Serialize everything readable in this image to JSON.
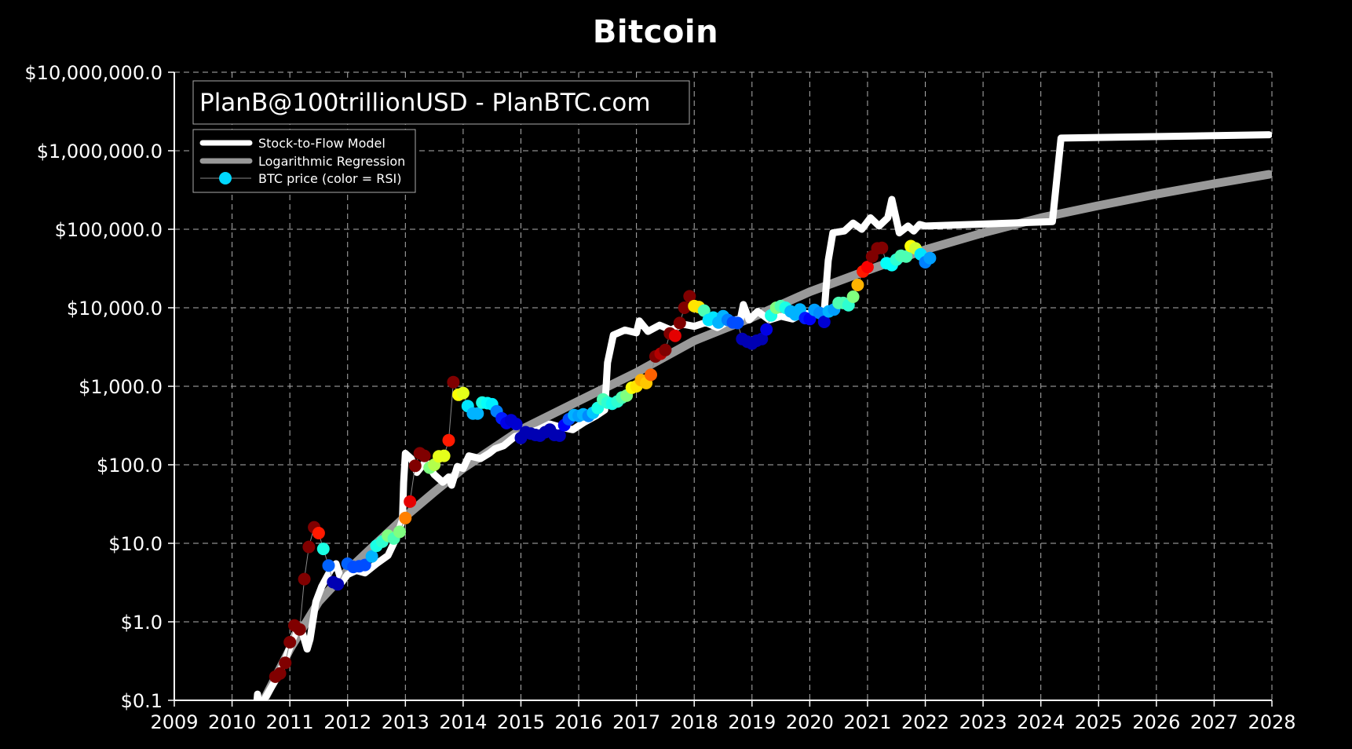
{
  "chart_data": {
    "type": "line",
    "title": "Bitcoin",
    "xlabel": "",
    "ylabel": "",
    "yscale": "log",
    "xlim": [
      2009,
      2028
    ],
    "ylim": [
      0.1,
      10000000
    ],
    "grid": true,
    "x_ticks": [
      "2009",
      "2010",
      "2011",
      "2012",
      "2013",
      "2014",
      "2015",
      "2016",
      "2017",
      "2018",
      "2019",
      "2020",
      "2021",
      "2022",
      "2023",
      "2024",
      "2025",
      "2026",
      "2027",
      "2028"
    ],
    "y_ticks": [
      "$0.1",
      "$1.0",
      "$10.0",
      "$100.0",
      "$1,000.0",
      "$10,000.0",
      "$100,000.0",
      "$1,000,000.0",
      "$10,000,000.0"
    ],
    "annotation": "PlanB@100trillionUSD - PlanBTC.com",
    "legend": {
      "position": "upper left",
      "entries": [
        {
          "label": "Stock-to-Flow Model",
          "color": "#ffffff",
          "style": "thick-line"
        },
        {
          "label": "Logarithmic Regression",
          "color": "#999999",
          "style": "thick-line"
        },
        {
          "label": "BTC price (color = RSI)",
          "color": "#00d8ff",
          "style": "line-marker"
        }
      ]
    },
    "series": [
      {
        "name": "Stock-to-Flow Model",
        "color": "#ffffff",
        "points": [
          [
            2010.42,
            0.08
          ],
          [
            2010.44,
            0.12
          ],
          [
            2010.47,
            0.08
          ],
          [
            2010.55,
            0.1
          ],
          [
            2010.75,
            0.18
          ],
          [
            2010.9,
            0.3
          ],
          [
            2011.05,
            0.6
          ],
          [
            2011.15,
            0.9
          ],
          [
            2011.2,
            0.8
          ],
          [
            2011.3,
            0.45
          ],
          [
            2011.35,
            0.6
          ],
          [
            2011.45,
            1.8
          ],
          [
            2011.55,
            2.8
          ],
          [
            2011.7,
            4.5
          ],
          [
            2011.8,
            5.5
          ],
          [
            2011.9,
            3.2
          ],
          [
            2012.0,
            4.0
          ],
          [
            2012.15,
            4.5
          ],
          [
            2012.3,
            4.2
          ],
          [
            2012.5,
            5.5
          ],
          [
            2012.7,
            7
          ],
          [
            2012.85,
            12
          ],
          [
            2012.95,
            20
          ],
          [
            2012.97,
            60
          ],
          [
            2013.0,
            140
          ],
          [
            2013.1,
            120
          ],
          [
            2013.2,
            80
          ],
          [
            2013.35,
            110
          ],
          [
            2013.5,
            75
          ],
          [
            2013.65,
            60
          ],
          [
            2013.75,
            70
          ],
          [
            2013.8,
            55
          ],
          [
            2013.9,
            95
          ],
          [
            2014.0,
            90
          ],
          [
            2014.1,
            130
          ],
          [
            2014.3,
            120
          ],
          [
            2014.45,
            140
          ],
          [
            2014.55,
            160
          ],
          [
            2014.7,
            175
          ],
          [
            2014.9,
            230
          ],
          [
            2015.1,
            250
          ],
          [
            2015.3,
            280
          ],
          [
            2015.5,
            330
          ],
          [
            2015.7,
            300
          ],
          [
            2015.9,
            280
          ],
          [
            2016.1,
            350
          ],
          [
            2016.3,
            420
          ],
          [
            2016.45,
            500
          ],
          [
            2016.5,
            2000
          ],
          [
            2016.6,
            4500
          ],
          [
            2016.8,
            5200
          ],
          [
            2017.0,
            4800
          ],
          [
            2017.05,
            6800
          ],
          [
            2017.2,
            5000
          ],
          [
            2017.4,
            6000
          ],
          [
            2017.6,
            5200
          ],
          [
            2017.8,
            6200
          ],
          [
            2018.0,
            5800
          ],
          [
            2018.2,
            6500
          ],
          [
            2018.4,
            5600
          ],
          [
            2018.6,
            6800
          ],
          [
            2018.8,
            7200
          ],
          [
            2018.85,
            11000
          ],
          [
            2018.95,
            7000
          ],
          [
            2019.1,
            9000
          ],
          [
            2019.3,
            7000
          ],
          [
            2019.5,
            7800
          ],
          [
            2019.7,
            7200
          ],
          [
            2019.9,
            8500
          ],
          [
            2020.1,
            8200
          ],
          [
            2020.25,
            9000
          ],
          [
            2020.32,
            40000
          ],
          [
            2020.4,
            90000
          ],
          [
            2020.6,
            95000
          ],
          [
            2020.75,
            120000
          ],
          [
            2020.9,
            100000
          ],
          [
            2021.05,
            140000
          ],
          [
            2021.2,
            110000
          ],
          [
            2021.35,
            140000
          ],
          [
            2021.42,
            240000
          ],
          [
            2021.55,
            90000
          ],
          [
            2021.7,
            110000
          ],
          [
            2021.8,
            95000
          ],
          [
            2021.9,
            115000
          ],
          [
            2022.0,
            110000
          ],
          [
            2024.2,
            125000
          ],
          [
            2024.35,
            1450000
          ],
          [
            2027.95,
            1600000
          ]
        ]
      },
      {
        "name": "Logarithmic Regression",
        "color": "#999999",
        "points": [
          [
            2010.55,
            0.1
          ],
          [
            2011.0,
            0.45
          ],
          [
            2011.5,
            1.8
          ],
          [
            2012.0,
            4.5
          ],
          [
            2012.5,
            10
          ],
          [
            2013.0,
            22
          ],
          [
            2013.5,
            45
          ],
          [
            2014.0,
            90
          ],
          [
            2015.0,
            280
          ],
          [
            2016.0,
            650
          ],
          [
            2017.0,
            1500
          ],
          [
            2018.0,
            3800
          ],
          [
            2019.0,
            7500
          ],
          [
            2020.0,
            16000
          ],
          [
            2021.0,
            30000
          ],
          [
            2022.0,
            55000
          ],
          [
            2023.0,
            90000
          ],
          [
            2024.0,
            140000
          ],
          [
            2025.0,
            200000
          ],
          [
            2026.0,
            280000
          ],
          [
            2027.0,
            380000
          ],
          [
            2027.95,
            500000
          ]
        ]
      },
      {
        "name": "BTC price (color = RSI)",
        "line_color": "#888888",
        "marker_colormap": "jet (RSI)",
        "points": [
          [
            2010.75,
            0.2,
            1
          ],
          [
            2010.83,
            0.22,
            1
          ],
          [
            2010.92,
            0.3,
            1
          ],
          [
            2011.0,
            0.55,
            1
          ],
          [
            2011.08,
            0.9,
            1
          ],
          [
            2011.17,
            0.8,
            1
          ],
          [
            2011.25,
            3.5,
            1
          ],
          [
            2011.33,
            9,
            1
          ],
          [
            2011.42,
            16,
            1
          ],
          [
            2011.5,
            13.5,
            0.85
          ],
          [
            2011.58,
            8.5,
            0.4
          ],
          [
            2011.67,
            5.2,
            0.22
          ],
          [
            2011.75,
            3.2,
            0.05
          ],
          [
            2011.83,
            3.0,
            0.05
          ],
          [
            2012.0,
            5.5,
            0.22
          ],
          [
            2012.1,
            5.0,
            0.2
          ],
          [
            2012.2,
            5.1,
            0.2
          ],
          [
            2012.3,
            5.3,
            0.2
          ],
          [
            2012.42,
            6.8,
            0.3
          ],
          [
            2012.5,
            9.3,
            0.4
          ],
          [
            2012.6,
            10.5,
            0.42
          ],
          [
            2012.7,
            12.5,
            0.5
          ],
          [
            2012.8,
            11.5,
            0.45
          ],
          [
            2012.9,
            14,
            0.5
          ],
          [
            2013.0,
            21,
            0.75
          ],
          [
            2013.08,
            34,
            0.9
          ],
          [
            2013.17,
            97,
            1
          ],
          [
            2013.25,
            140,
            1
          ],
          [
            2013.33,
            130,
            1
          ],
          [
            2013.42,
            92,
            0.5
          ],
          [
            2013.5,
            100,
            0.55
          ],
          [
            2013.58,
            128,
            0.6
          ],
          [
            2013.67,
            130,
            0.6
          ],
          [
            2013.75,
            205,
            0.85
          ],
          [
            2013.83,
            1130,
            1
          ],
          [
            2013.92,
            780,
            0.62
          ],
          [
            2014.0,
            820,
            0.6
          ],
          [
            2014.08,
            560,
            0.35
          ],
          [
            2014.17,
            450,
            0.3
          ],
          [
            2014.25,
            450,
            0.3
          ],
          [
            2014.33,
            620,
            0.4
          ],
          [
            2014.42,
            610,
            0.38
          ],
          [
            2014.5,
            590,
            0.36
          ],
          [
            2014.58,
            480,
            0.25
          ],
          [
            2014.67,
            390,
            0.15
          ],
          [
            2014.75,
            340,
            0.1
          ],
          [
            2014.83,
            370,
            0.08
          ],
          [
            2014.92,
            330,
            0.08
          ],
          [
            2015.0,
            220,
            0.05
          ],
          [
            2015.08,
            260,
            0.05
          ],
          [
            2015.17,
            250,
            0.05
          ],
          [
            2015.25,
            240,
            0.05
          ],
          [
            2015.33,
            235,
            0.05
          ],
          [
            2015.42,
            260,
            0.05
          ],
          [
            2015.5,
            280,
            0.05
          ],
          [
            2015.58,
            240,
            0.05
          ],
          [
            2015.67,
            235,
            0.05
          ],
          [
            2015.75,
            320,
            0.12
          ],
          [
            2015.83,
            380,
            0.2
          ],
          [
            2015.92,
            430,
            0.3
          ],
          [
            2016.0,
            420,
            0.28
          ],
          [
            2016.08,
            440,
            0.3
          ],
          [
            2016.17,
            420,
            0.26
          ],
          [
            2016.25,
            460,
            0.32
          ],
          [
            2016.33,
            530,
            0.4
          ],
          [
            2016.42,
            680,
            0.45
          ],
          [
            2016.5,
            620,
            0.42
          ],
          [
            2016.58,
            600,
            0.4
          ],
          [
            2016.67,
            640,
            0.42
          ],
          [
            2016.75,
            720,
            0.45
          ],
          [
            2016.83,
            760,
            0.5
          ],
          [
            2016.92,
            960,
            0.62
          ],
          [
            2017.0,
            1000,
            0.65
          ],
          [
            2017.08,
            1200,
            0.7
          ],
          [
            2017.17,
            1100,
            0.68
          ],
          [
            2017.25,
            1400,
            0.78
          ],
          [
            2017.33,
            2400,
            1
          ],
          [
            2017.42,
            2600,
            0.95
          ],
          [
            2017.5,
            2900,
            1
          ],
          [
            2017.58,
            4700,
            1
          ],
          [
            2017.67,
            4400,
            0.9
          ],
          [
            2017.75,
            6400,
            1
          ],
          [
            2017.83,
            10000,
            1
          ],
          [
            2017.92,
            14000,
            1
          ],
          [
            2018.0,
            10500,
            0.65
          ],
          [
            2018.08,
            10200,
            0.65
          ],
          [
            2018.17,
            9200,
            0.45
          ],
          [
            2018.25,
            7000,
            0.35
          ],
          [
            2018.33,
            7500,
            0.35
          ],
          [
            2018.42,
            6500,
            0.3
          ],
          [
            2018.5,
            7800,
            0.3
          ],
          [
            2018.58,
            7000,
            0.25
          ],
          [
            2018.67,
            6500,
            0.2
          ],
          [
            2018.75,
            6400,
            0.2
          ],
          [
            2018.83,
            4000,
            0.05
          ],
          [
            2018.92,
            3700,
            0.05
          ],
          [
            2019.0,
            3500,
            0.05
          ],
          [
            2019.08,
            3800,
            0.05
          ],
          [
            2019.17,
            4000,
            0.05
          ],
          [
            2019.25,
            5300,
            0.1
          ],
          [
            2019.33,
            8000,
            0.4
          ],
          [
            2019.42,
            10000,
            0.5
          ],
          [
            2019.5,
            10500,
            0.45
          ],
          [
            2019.58,
            10000,
            0.4
          ],
          [
            2019.67,
            9000,
            0.3
          ],
          [
            2019.75,
            8200,
            0.3
          ],
          [
            2019.83,
            9500,
            0.3
          ],
          [
            2019.92,
            7400,
            0.15
          ],
          [
            2020.0,
            7200,
            0.12
          ],
          [
            2020.08,
            9400,
            0.28
          ],
          [
            2020.17,
            8600,
            0.26
          ],
          [
            2020.25,
            6600,
            0.08
          ],
          [
            2020.33,
            9000,
            0.3
          ],
          [
            2020.42,
            9500,
            0.28
          ],
          [
            2020.5,
            11500,
            0.45
          ],
          [
            2020.58,
            11500,
            0.45
          ],
          [
            2020.67,
            10800,
            0.42
          ],
          [
            2020.75,
            13800,
            0.5
          ],
          [
            2020.83,
            19500,
            0.7
          ],
          [
            2020.92,
            29000,
            0.85
          ],
          [
            2021.0,
            33000,
            0.88
          ],
          [
            2021.08,
            45000,
            1
          ],
          [
            2021.17,
            57000,
            1
          ],
          [
            2021.25,
            58000,
            1
          ],
          [
            2021.33,
            37000,
            0.38
          ],
          [
            2021.42,
            35000,
            0.38
          ],
          [
            2021.5,
            41000,
            0.42
          ],
          [
            2021.58,
            46000,
            0.45
          ],
          [
            2021.67,
            45000,
            0.45
          ],
          [
            2021.75,
            61000,
            0.62
          ],
          [
            2021.83,
            57000,
            0.58
          ],
          [
            2021.92,
            48000,
            0.35
          ],
          [
            2022.0,
            38000,
            0.25
          ],
          [
            2022.08,
            43000,
            0.28
          ]
        ]
      }
    ]
  },
  "header": {
    "title": "Bitcoin"
  },
  "annotation_box": {
    "text": "PlanB@100trillionUSD - PlanBTC.com"
  },
  "legend": {
    "items": [
      {
        "label": "Stock-to-Flow Model"
      },
      {
        "label": "Logarithmic Regression"
      },
      {
        "label": "BTC price (color = RSI)"
      }
    ]
  },
  "axes": {
    "x_labels": [
      "2009",
      "2010",
      "2011",
      "2012",
      "2013",
      "2014",
      "2015",
      "2016",
      "2017",
      "2018",
      "2019",
      "2020",
      "2021",
      "2022",
      "2023",
      "2024",
      "2025",
      "2026",
      "2027",
      "2028"
    ],
    "y_labels": [
      "$0.1",
      "$1.0",
      "$10.0",
      "$100.0",
      "$1,000.0",
      "$10,000.0",
      "$100,000.0",
      "$1,000,000.0",
      "$10,000,000.0"
    ]
  }
}
